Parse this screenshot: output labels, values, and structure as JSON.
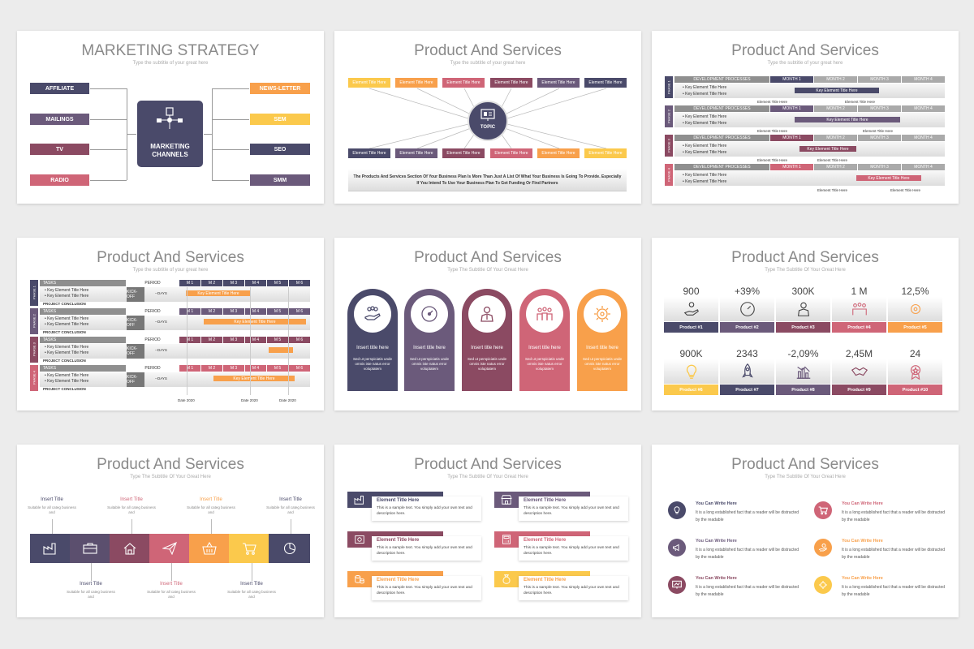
{
  "colors": {
    "navy": "#4a4a6a",
    "purple": "#6b5a7b",
    "plum": "#8b4a62",
    "rose": "#cf6577",
    "orange": "#f8a04b",
    "yellow": "#fbc94c",
    "gray": "#8f8f8f"
  },
  "s1": {
    "title": "MARKETING STRATEGY",
    "subtitle": "Type the subtitle of your great here",
    "left": [
      "AFFILIATE",
      "MAILINGS",
      "TV",
      "RADIO"
    ],
    "right": [
      "NEWS-LETTER",
      "SEM",
      "SEO",
      "SMM"
    ],
    "center": "MARKETING CHANNELS"
  },
  "s2": {
    "title": "Product And Services",
    "subtitle": "Type the subtitle of your great here",
    "tag": "Element Title Here",
    "center": "TOPIC",
    "footer": "The Products And Services Section Of Your Business Plan Is More Than Just A List Of What Your Business Is Going To Provide. Especially If You Intend To Use Your Business Plan To Get Funding Or Find Partners"
  },
  "s3": {
    "title": "Product And Services",
    "subtitle": "Type the subtitle of your great here",
    "dev": "DEVELOPMENT PROCESSES",
    "months": [
      "MONTH 1",
      "MONTH 2",
      "MONTH 3",
      "MONTH 4"
    ],
    "bullets": [
      "Key Element Title Here",
      "Key Element Title Here"
    ],
    "bar": "Key Element Title Here",
    "under": "Element Title Here",
    "phases": [
      "PHASE 1",
      "PHASE 2",
      "PHASE 3",
      "PHASE 4"
    ]
  },
  "s4": {
    "title": "Product And Services",
    "subtitle": "Type the subtitle of your great here",
    "tasks": "TASKS",
    "period": "PERIOD",
    "months": [
      "M 1",
      "M 2",
      "M 3",
      "M 4",
      "M 5",
      "M 6"
    ],
    "kick": "KICK-OFF",
    "days": "--DAYS",
    "concl": "PROJECT CONCLUSION",
    "bullets": [
      "Key Element Title Here",
      "Key Element Title Here"
    ],
    "bar": "Key Element Title Here",
    "date": "Date 2020",
    "phases": [
      "PHASE 1",
      "PHASE 2",
      "PHASE 3",
      "PHASE 4"
    ]
  },
  "s5": {
    "title": "Product And Services",
    "subtitle": "Type The Subtitle Of Your Great Here",
    "item_title": "Insert title here",
    "item_desc": "Sed ut perspiciatis unde omnis iste natus error voluptatem"
  },
  "s6": {
    "title": "Product And Services",
    "subtitle": "Type The Subtitle Of Your Great Here",
    "values": [
      "900",
      "+39%",
      "300K",
      "1 M",
      "12,5%",
      "900K",
      "2343",
      "-2,09%",
      "2,45M",
      "24"
    ],
    "labels": [
      "Product #1",
      "Product #2",
      "Product #3",
      "Product #4",
      "Product #5",
      "Product #6",
      "Product #7",
      "Product #8",
      "Product #9",
      "Product #10"
    ]
  },
  "s7": {
    "title": "Product And Services",
    "subtitle": "Type The Subtitle Of Your Great Here",
    "item_title": "Insert Title",
    "item_desc": "Suitable for all categ business and"
  },
  "s8": {
    "title": "Product And Services",
    "subtitle": "Type The Subtitle Of Your Great Here",
    "item_title": "Element Title Here",
    "item_desc": "This is a sample text. You simply add your own text and description here."
  },
  "s9": {
    "title": "Product And Services",
    "subtitle": "Type The Subtitle Of Your Great Here",
    "item_title": "You Can Write Here",
    "item_desc": "It is a long established fact that a reader will be distracted by the readable"
  }
}
